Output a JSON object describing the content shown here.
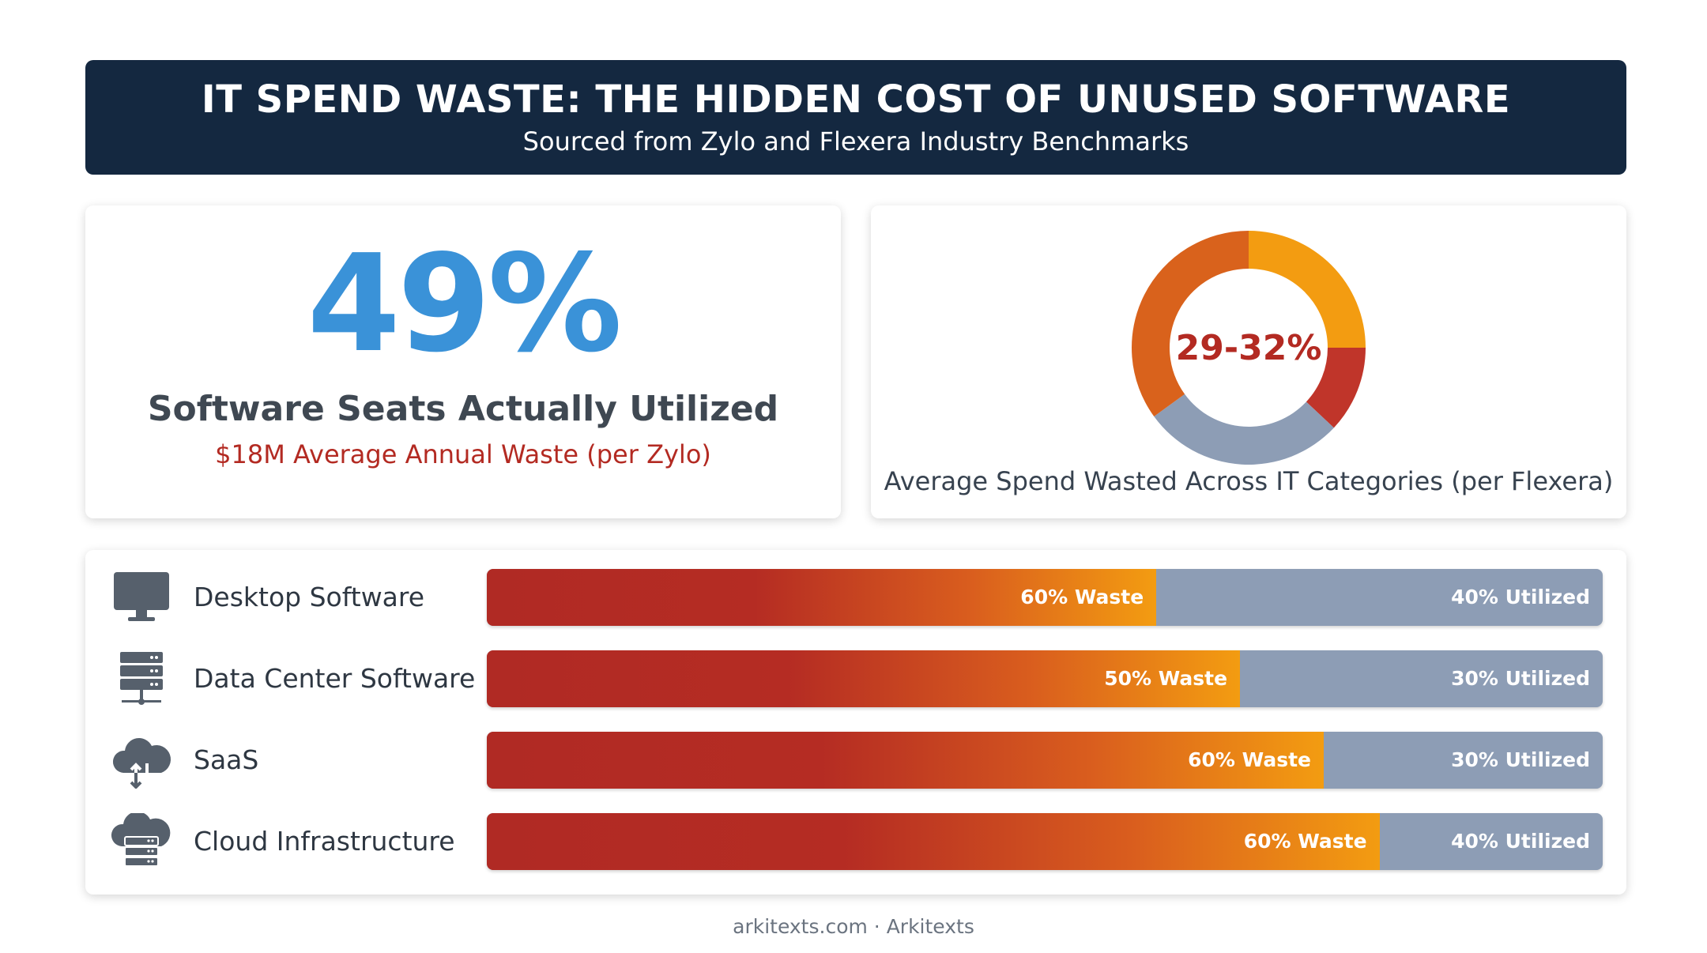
{
  "header": {
    "title": "IT SPEND WASTE: THE HIDDEN COST OF UNUSED SOFTWARE",
    "subtitle": "Sourced from Zylo and Flexera Industry Benchmarks"
  },
  "left_card": {
    "stat": "49%",
    "label": "Software Seats Actually Utilized",
    "note": "$18M Average Annual Waste (per Zylo)"
  },
  "right_card": {
    "center_label": "29-32%",
    "caption": "Average Spend Wasted Across IT Categories (per Flexera)"
  },
  "footer": "arkitexts.com · Arkitexts",
  "colors": {
    "navy": "#142840",
    "blue": "#3a92d8",
    "waste_red": "#b02a24",
    "waste_orange": "#f39c11",
    "utilized_gray": "#8d9db5",
    "accent_red": "#b32a22"
  },
  "chart_data": [
    {
      "type": "pie",
      "title": "",
      "slices": [
        {
          "name": "",
          "value": 25,
          "color": "#f39c11"
        },
        {
          "name": "",
          "value": 12,
          "color": "#c0352a"
        },
        {
          "name": "",
          "value": 28,
          "color": "#8d9db5"
        },
        {
          "name": "",
          "value": 35,
          "color": "#d9621c"
        }
      ]
    },
    {
      "type": "bar",
      "orientation": "horizontal-stacked",
      "title": "",
      "categories": [
        "Desktop Software",
        "Data Center Software",
        "SaaS",
        "Cloud Infrastructure"
      ],
      "icons": [
        "monitor-icon",
        "server-rack-icon",
        "cloud-upload-icon",
        "cloud-server-icon"
      ],
      "series": [
        {
          "values": [
            60,
            50,
            60,
            60
          ],
          "labels": [
            "60% Waste",
            "50% Waste",
            "60% Waste",
            "60% Waste"
          ],
          "color": "#b02a24"
        },
        {
          "values": [
            40,
            30,
            30,
            40
          ],
          "labels": [
            "40% Utilized",
            "30% Utilized",
            "30% Utilized",
            "40% Utilized"
          ],
          "color": "#8d9db5"
        }
      ],
      "waste_bar_end_pct": [
        60,
        67.5,
        75,
        80
      ]
    }
  ]
}
